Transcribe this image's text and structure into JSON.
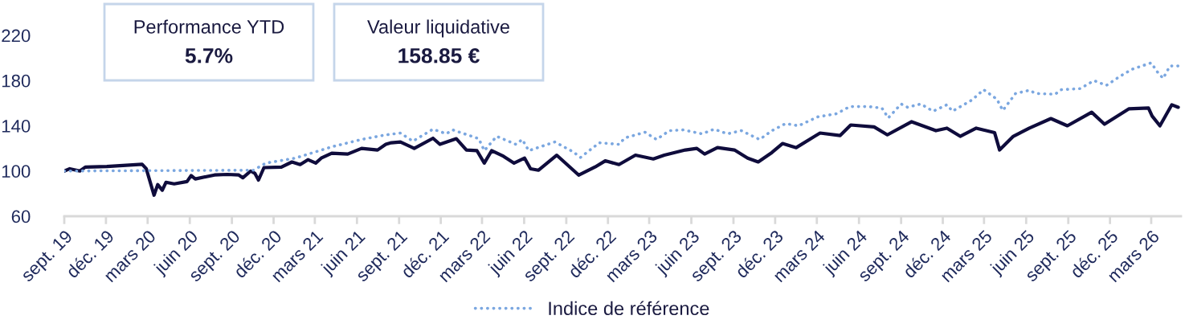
{
  "chart_data": {
    "type": "line",
    "annotations": [
      "Performance YTD",
      "5.7%",
      "Valeur liquidative",
      "158.85 €"
    ],
    "series": [
      {
        "color": "#0f0c3c",
        "line_style": "solid",
        "x": [
          "2019-09-01",
          "2019-09-13",
          "2019-10-05",
          "2019-10-17",
          "2019-12-03",
          "2020-02-18",
          "2020-02-27",
          "2020-03-15",
          "2020-03-23",
          "2020-04-02",
          "2020-04-10",
          "2020-04-28",
          "2020-05-26",
          "2020-06-04",
          "2020-06-13",
          "2020-07-25",
          "2020-08-22",
          "2020-09-16",
          "2020-09-25",
          "2020-10-12",
          "2020-10-21",
          "2020-10-29",
          "2020-11-10",
          "2020-12-18",
          "2021-01-10",
          "2021-01-28",
          "2021-02-14",
          "2021-03-03",
          "2021-03-15",
          "2021-04-07",
          "2021-05-12",
          "2021-06-11",
          "2021-07-16",
          "2021-08-03",
          "2021-08-15",
          "2021-09-04",
          "2021-10-04",
          "2021-11-14",
          "2021-11-29",
          "2022-01-04",
          "2022-01-26",
          "2022-02-18",
          "2022-03-06",
          "2022-03-22",
          "2022-04-17",
          "2022-05-10",
          "2022-06-02",
          "2022-06-15",
          "2022-07-02",
          "2022-08-11",
          "2022-09-28",
          "2022-11-03",
          "2022-11-25",
          "2022-12-25",
          "2023-01-30",
          "2023-03-10",
          "2023-04-03",
          "2023-05-19",
          "2023-06-13",
          "2023-06-30",
          "2023-07-28",
          "2023-09-03",
          "2023-10-02",
          "2023-10-25",
          "2023-11-24",
          "2023-12-17",
          "2024-01-16",
          "2024-03-08",
          "2024-04-21",
          "2024-05-14",
          "2024-07-04",
          "2024-08-02",
          "2024-09-24",
          "2024-11-16",
          "2024-12-10",
          "2025-01-08",
          "2025-02-12",
          "2025-03-24",
          "2025-04-04",
          "2025-05-04",
          "2025-06-08",
          "2025-07-25",
          "2025-08-30",
          "2025-10-22",
          "2025-11-19",
          "2026-01-11",
          "2026-02-23",
          "2026-03-03",
          "2026-03-20",
          "2026-04-15",
          "2026-04-29"
        ],
        "values": [
          100,
          102,
          100,
          103.5,
          104,
          106,
          102,
          78.6,
          88,
          83,
          90,
          88.6,
          90.7,
          96,
          93,
          96.5,
          97,
          96.5,
          94,
          100,
          98,
          92,
          103,
          103.5,
          108,
          105.7,
          110,
          107,
          111.4,
          115.7,
          115,
          120,
          118.6,
          123.6,
          125,
          125.7,
          120,
          129,
          123.6,
          128.6,
          118.6,
          118,
          107,
          118,
          113,
          107,
          111.4,
          102,
          100.7,
          114,
          96.4,
          103.6,
          109,
          105.7,
          114,
          110.7,
          114,
          118.6,
          120,
          115,
          120.7,
          118.6,
          111.4,
          108,
          116.4,
          124.3,
          120.7,
          133.6,
          131.4,
          140.7,
          139,
          132,
          143.6,
          135.7,
          137.9,
          130.7,
          137.9,
          134,
          118.6,
          130.7,
          137.9,
          146.4,
          140,
          152,
          141.4,
          155,
          155.7,
          148.6,
          140,
          158.6,
          156.4
        ]
      },
      {
        "name": "Indice de référence",
        "color": "#7ba7e0",
        "line_style": "dotted",
        "x": [
          "2019-09-01",
          "2020-10-18",
          "2020-11-14",
          "2021-01-17",
          "2021-04-07",
          "2021-06-11",
          "2021-08-03",
          "2021-09-04",
          "2021-10-01",
          "2021-11-14",
          "2021-12-13",
          "2021-12-27",
          "2022-02-22",
          "2022-03-06",
          "2022-04-02",
          "2022-05-14",
          "2022-05-28",
          "2022-06-11",
          "2022-08-07",
          "2022-09-16",
          "2022-10-02",
          "2022-11-12",
          "2022-12-25",
          "2023-01-07",
          "2023-02-20",
          "2023-03-17",
          "2023-04-14",
          "2023-05-14",
          "2023-06-24",
          "2023-07-21",
          "2023-08-19",
          "2023-09-18",
          "2023-10-28",
          "2023-11-24",
          "2023-12-24",
          "2024-01-21",
          "2024-03-03",
          "2024-04-13",
          "2024-05-12",
          "2024-06-22",
          "2024-07-21",
          "2024-08-04",
          "2024-09-01",
          "2024-09-15",
          "2024-10-14",
          "2024-11-10",
          "2024-12-10",
          "2024-12-22",
          "2025-02-03",
          "2025-02-28",
          "2025-03-29",
          "2025-04-11",
          "2025-05-09",
          "2025-06-08",
          "2025-06-22",
          "2025-08-03",
          "2025-08-17",
          "2025-09-27",
          "2025-10-27",
          "2025-11-23",
          "2025-12-22",
          "2026-01-18",
          "2026-03-01",
          "2026-03-14",
          "2026-03-27",
          "2026-04-11",
          "2026-04-29"
        ],
        "values": [
          100,
          100.7,
          107,
          111.4,
          121.4,
          127.9,
          132,
          133.6,
          126.4,
          137,
          133,
          136.4,
          128.6,
          118,
          130.7,
          123.6,
          127.9,
          118,
          125.7,
          117,
          112,
          125,
          123.6,
          129.3,
          134.3,
          127.9,
          135.7,
          136.4,
          132.9,
          137,
          132.9,
          135.7,
          127.9,
          135.7,
          142,
          140,
          147.9,
          150.7,
          157,
          157,
          155.7,
          147,
          159.3,
          156.4,
          159.3,
          152.9,
          158.6,
          152.9,
          162.9,
          172,
          163.6,
          153.6,
          168.6,
          171.4,
          168.6,
          167.9,
          172,
          172.9,
          180,
          175.7,
          183.6,
          190,
          195.7,
          187.9,
          182,
          192.9,
          192.9
        ]
      }
    ],
    "xlim": [
      "2019-09-01",
      "2026-05-05"
    ],
    "xticks": [
      {
        "value": "2019-09-01",
        "label": "sept. 19"
      },
      {
        "value": "2019-12-01",
        "label": "déc. 19"
      },
      {
        "value": "2020-03-01",
        "label": "mars 20"
      },
      {
        "value": "2020-06-01",
        "label": "juin 20"
      },
      {
        "value": "2020-09-01",
        "label": "sept. 20"
      },
      {
        "value": "2020-12-01",
        "label": "déc. 20"
      },
      {
        "value": "2021-03-01",
        "label": "mars 21"
      },
      {
        "value": "2021-06-01",
        "label": "juin 21"
      },
      {
        "value": "2021-09-01",
        "label": "sept. 21"
      },
      {
        "value": "2021-12-01",
        "label": "déc. 21"
      },
      {
        "value": "2022-03-01",
        "label": "mars 22"
      },
      {
        "value": "2022-06-01",
        "label": "juin 22"
      },
      {
        "value": "2022-09-01",
        "label": "sept. 22"
      },
      {
        "value": "2022-12-01",
        "label": "déc. 22"
      },
      {
        "value": "2023-03-01",
        "label": "mars 23"
      },
      {
        "value": "2023-06-01",
        "label": "juin 23"
      },
      {
        "value": "2023-09-01",
        "label": "sept. 23"
      },
      {
        "value": "2023-12-01",
        "label": "déc. 23"
      },
      {
        "value": "2024-03-01",
        "label": "mars 24"
      },
      {
        "value": "2024-06-01",
        "label": "juin 24"
      },
      {
        "value": "2024-09-01",
        "label": "sept. 24"
      },
      {
        "value": "2024-12-01",
        "label": "déc. 24"
      },
      {
        "value": "2025-03-01",
        "label": "mars 25"
      },
      {
        "value": "2025-06-01",
        "label": "juin 25"
      },
      {
        "value": "2025-09-01",
        "label": "sept. 25"
      },
      {
        "value": "2025-12-01",
        "label": "déc. 25"
      },
      {
        "value": "2026-03-01",
        "label": "mars 26"
      }
    ],
    "ylim": [
      60,
      220
    ],
    "yticks": [
      60,
      100,
      140,
      180,
      220
    ],
    "grid": false,
    "legend": "bottom"
  }
}
